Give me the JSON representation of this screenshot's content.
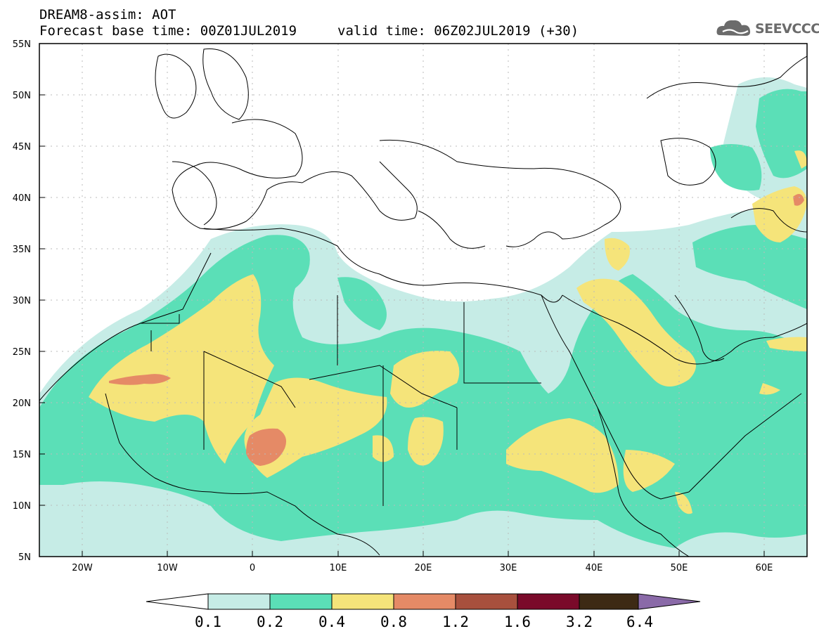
{
  "header": {
    "title": "DREAM8-assim: AOT",
    "forecast": "Forecast base time: 00Z01JUL2019",
    "valid": "valid time: 06Z02JUL2019 (+30)"
  },
  "logo": {
    "text": "SEEVCCC",
    "icon": "cloud-icon"
  },
  "map": {
    "lon_range": [
      -25,
      65
    ],
    "lat_range": [
      5,
      55
    ],
    "x_ticks": [
      "20W",
      "10W",
      "0",
      "10E",
      "20E",
      "30E",
      "40E",
      "50E",
      "60E"
    ],
    "y_ticks": [
      "55N",
      "50N",
      "45N",
      "40N",
      "35N",
      "30N",
      "25N",
      "20N",
      "15N",
      "10N",
      "5N"
    ],
    "grid": "dotted"
  },
  "colorbar": {
    "colors": [
      "#ffffff",
      "#c6ece6",
      "#5bdfb7",
      "#f5e47a",
      "#e58a66",
      "#a8503d",
      "#7a0a2a",
      "#3d2a14",
      "#8a6aa8"
    ],
    "labels": [
      "0.1",
      "0.2",
      "0.4",
      "0.8",
      "1.2",
      "1.6",
      "3.2",
      "6.4"
    ]
  }
}
